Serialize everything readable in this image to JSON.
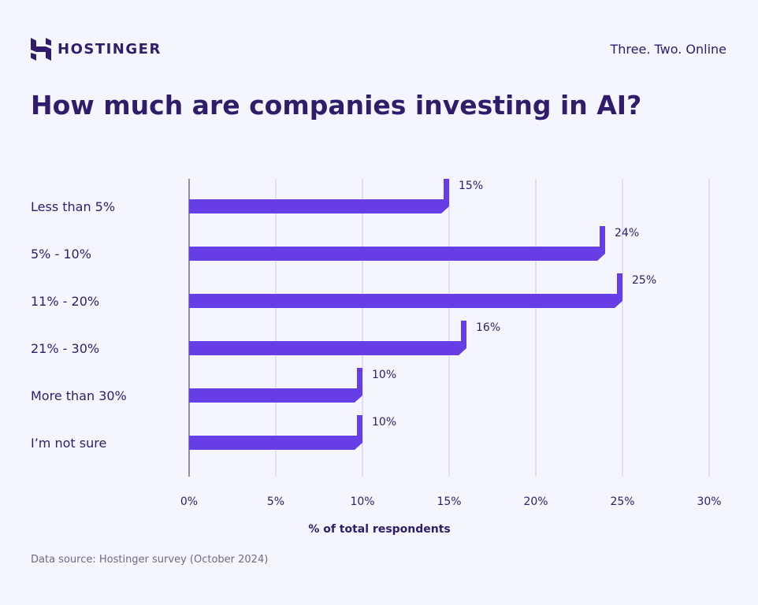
{
  "header": {
    "brand": "HOSTINGER",
    "tagline": "Three. Two. Online"
  },
  "footer": {
    "source": "Data source: Hostinger survey (October 2024)"
  },
  "colors": {
    "bar": "#673de6",
    "text": "#2f1c6a",
    "grid": "#c9c6ee",
    "background": "#f4f5ff"
  },
  "chart_data": {
    "type": "bar",
    "orientation": "horizontal",
    "title": "How much are companies investing in AI?",
    "categories": [
      "Less than 5%",
      "5% - 10%",
      "11% - 20%",
      "21% - 30%",
      "More than 30%",
      "I’m not sure"
    ],
    "values": [
      15,
      24,
      25,
      16,
      10,
      10
    ],
    "data_labels": [
      "15%",
      "24%",
      "25%",
      "16%",
      "10%",
      "10%"
    ],
    "xlabel": "% of total respondents",
    "xlim": [
      0,
      30
    ],
    "xticks": [
      0,
      5,
      10,
      15,
      20,
      25,
      30
    ],
    "xtick_labels": [
      "0%",
      "5%",
      "10%",
      "15%",
      "20%",
      "25%",
      "30%"
    ],
    "grid": "vertical"
  }
}
